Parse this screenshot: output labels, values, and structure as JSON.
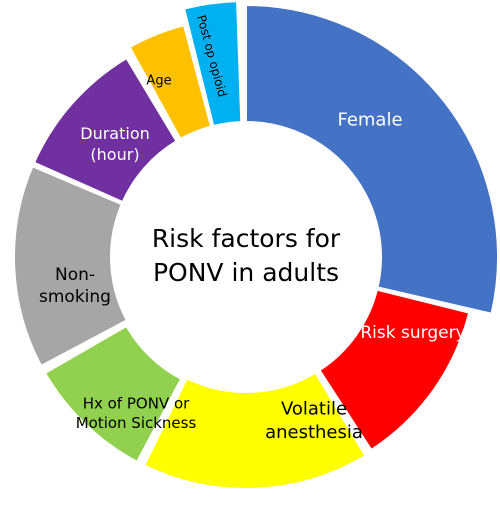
{
  "diagram": {
    "center_title": {
      "line1": "Risk factors for",
      "line2": "PONV in adults"
    },
    "segments": [
      {
        "id": "female",
        "label_lines": [
          "Female"
        ],
        "color": "#4472C4",
        "text_color": "#ffffff"
      },
      {
        "id": "risk-surgery",
        "label_lines": [
          "Risk surgery"
        ],
        "color": "#FF0000",
        "text_color": "#ffffff"
      },
      {
        "id": "volatile-anesthesia",
        "label_lines": [
          "Volatile",
          "anesthesia"
        ],
        "color": "#FFFF00",
        "text_color": "#000000"
      },
      {
        "id": "hx-ponv",
        "label_lines": [
          "Hx of PONV or",
          "Motion Sickness"
        ],
        "color": "#92D050",
        "text_color": "#000000"
      },
      {
        "id": "non-smoking",
        "label_lines": [
          "Non-",
          "smoking"
        ],
        "color": "#A6A6A6",
        "text_color": "#000000"
      },
      {
        "id": "duration",
        "label_lines": [
          "Duration",
          "(hour)"
        ],
        "color": "#7030A0",
        "text_color": "#ffffff"
      },
      {
        "id": "age",
        "label_lines": [
          "Age"
        ],
        "color": "#FFC000",
        "text_color": "#000000"
      },
      {
        "id": "post-op-opioid",
        "label_lines": [
          "Post op opioid"
        ],
        "color": "#00B0F0",
        "text_color": "#000000"
      }
    ]
  }
}
